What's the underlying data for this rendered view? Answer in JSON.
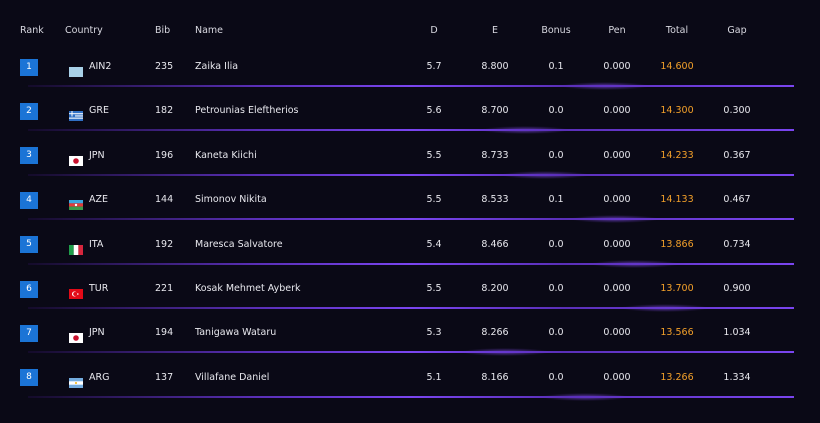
{
  "table": {
    "header": [
      "Rank",
      "Country",
      "Bib",
      "Name",
      "D",
      "E",
      "Bonus",
      "Pen",
      "Total",
      "Gap"
    ],
    "rows": [
      [
        "1",
        "AIN2",
        "235",
        "Zaika Ilia",
        "5.7",
        "8.800",
        "0.1",
        "0.000",
        "14.600"
      ],
      [
        "2",
        "GRE",
        "182",
        "Petrounias Eleftherios",
        "5.6",
        "8.700",
        "0.0",
        "0.000",
        "14.300",
        "0.300"
      ],
      [
        "3",
        "JPN",
        "196",
        "Kaneta Kiichi",
        "5.5",
        "8.733",
        "0.0",
        "0.000",
        "14.233",
        "0.367"
      ],
      [
        "4",
        "AZE",
        "144",
        "Simonov Nikita",
        "5.5",
        "8.533",
        "0.1",
        "0.000",
        "14.133",
        "0.467"
      ],
      [
        "5",
        "ITA",
        "192",
        "Maresca Salvatore",
        "5.4",
        "8.466",
        "0.0",
        "0.000",
        "13.866",
        "0.734"
      ],
      [
        "6",
        "TUR",
        "221",
        "Kosak Mehmet Ayberk",
        "5.5",
        "8.200",
        "0.0",
        "0.000",
        "13.700",
        "0.900"
      ],
      [
        "7",
        "JPN",
        "194",
        "Tanigawa Wataru",
        "5.3",
        "8.266",
        "0.0",
        "0.000",
        "13.566",
        "1.034"
      ],
      [
        "8",
        "ARG",
        "137",
        "Villafane Daniel",
        "5.1",
        "8.166",
        "0.0",
        "0.000",
        "13.266",
        "1.334"
      ]
    ]
  }
}
